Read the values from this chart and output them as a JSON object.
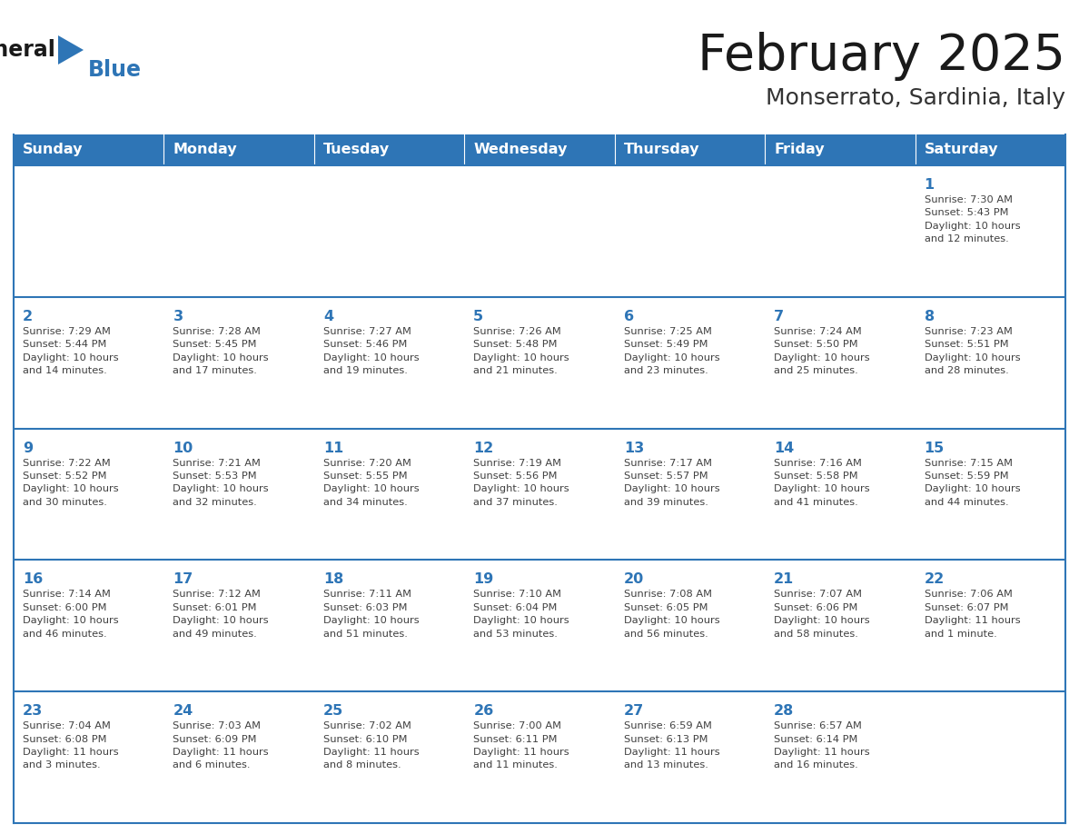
{
  "title": "February 2025",
  "subtitle": "Monserrato, Sardinia, Italy",
  "header_bg": "#2E75B6",
  "header_text_color": "#FFFFFF",
  "border_color": "#2E75B6",
  "title_color": "#1a1a1a",
  "subtitle_color": "#333333",
  "day_number_color": "#2E75B6",
  "info_color": "#404040",
  "logo_general_color": "#1a1a1a",
  "logo_blue_color": "#2E75B6",
  "logo_triangle_color": "#2E75B6",
  "day_names": [
    "Sunday",
    "Monday",
    "Tuesday",
    "Wednesday",
    "Thursday",
    "Friday",
    "Saturday"
  ],
  "weeks": [
    [
      {
        "day": "",
        "info": ""
      },
      {
        "day": "",
        "info": ""
      },
      {
        "day": "",
        "info": ""
      },
      {
        "day": "",
        "info": ""
      },
      {
        "day": "",
        "info": ""
      },
      {
        "day": "",
        "info": ""
      },
      {
        "day": "1",
        "info": "Sunrise: 7:30 AM\nSunset: 5:43 PM\nDaylight: 10 hours\nand 12 minutes."
      }
    ],
    [
      {
        "day": "2",
        "info": "Sunrise: 7:29 AM\nSunset: 5:44 PM\nDaylight: 10 hours\nand 14 minutes."
      },
      {
        "day": "3",
        "info": "Sunrise: 7:28 AM\nSunset: 5:45 PM\nDaylight: 10 hours\nand 17 minutes."
      },
      {
        "day": "4",
        "info": "Sunrise: 7:27 AM\nSunset: 5:46 PM\nDaylight: 10 hours\nand 19 minutes."
      },
      {
        "day": "5",
        "info": "Sunrise: 7:26 AM\nSunset: 5:48 PM\nDaylight: 10 hours\nand 21 minutes."
      },
      {
        "day": "6",
        "info": "Sunrise: 7:25 AM\nSunset: 5:49 PM\nDaylight: 10 hours\nand 23 minutes."
      },
      {
        "day": "7",
        "info": "Sunrise: 7:24 AM\nSunset: 5:50 PM\nDaylight: 10 hours\nand 25 minutes."
      },
      {
        "day": "8",
        "info": "Sunrise: 7:23 AM\nSunset: 5:51 PM\nDaylight: 10 hours\nand 28 minutes."
      }
    ],
    [
      {
        "day": "9",
        "info": "Sunrise: 7:22 AM\nSunset: 5:52 PM\nDaylight: 10 hours\nand 30 minutes."
      },
      {
        "day": "10",
        "info": "Sunrise: 7:21 AM\nSunset: 5:53 PM\nDaylight: 10 hours\nand 32 minutes."
      },
      {
        "day": "11",
        "info": "Sunrise: 7:20 AM\nSunset: 5:55 PM\nDaylight: 10 hours\nand 34 minutes."
      },
      {
        "day": "12",
        "info": "Sunrise: 7:19 AM\nSunset: 5:56 PM\nDaylight: 10 hours\nand 37 minutes."
      },
      {
        "day": "13",
        "info": "Sunrise: 7:17 AM\nSunset: 5:57 PM\nDaylight: 10 hours\nand 39 minutes."
      },
      {
        "day": "14",
        "info": "Sunrise: 7:16 AM\nSunset: 5:58 PM\nDaylight: 10 hours\nand 41 minutes."
      },
      {
        "day": "15",
        "info": "Sunrise: 7:15 AM\nSunset: 5:59 PM\nDaylight: 10 hours\nand 44 minutes."
      }
    ],
    [
      {
        "day": "16",
        "info": "Sunrise: 7:14 AM\nSunset: 6:00 PM\nDaylight: 10 hours\nand 46 minutes."
      },
      {
        "day": "17",
        "info": "Sunrise: 7:12 AM\nSunset: 6:01 PM\nDaylight: 10 hours\nand 49 minutes."
      },
      {
        "day": "18",
        "info": "Sunrise: 7:11 AM\nSunset: 6:03 PM\nDaylight: 10 hours\nand 51 minutes."
      },
      {
        "day": "19",
        "info": "Sunrise: 7:10 AM\nSunset: 6:04 PM\nDaylight: 10 hours\nand 53 minutes."
      },
      {
        "day": "20",
        "info": "Sunrise: 7:08 AM\nSunset: 6:05 PM\nDaylight: 10 hours\nand 56 minutes."
      },
      {
        "day": "21",
        "info": "Sunrise: 7:07 AM\nSunset: 6:06 PM\nDaylight: 10 hours\nand 58 minutes."
      },
      {
        "day": "22",
        "info": "Sunrise: 7:06 AM\nSunset: 6:07 PM\nDaylight: 11 hours\nand 1 minute."
      }
    ],
    [
      {
        "day": "23",
        "info": "Sunrise: 7:04 AM\nSunset: 6:08 PM\nDaylight: 11 hours\nand 3 minutes."
      },
      {
        "day": "24",
        "info": "Sunrise: 7:03 AM\nSunset: 6:09 PM\nDaylight: 11 hours\nand 6 minutes."
      },
      {
        "day": "25",
        "info": "Sunrise: 7:02 AM\nSunset: 6:10 PM\nDaylight: 11 hours\nand 8 minutes."
      },
      {
        "day": "26",
        "info": "Sunrise: 7:00 AM\nSunset: 6:11 PM\nDaylight: 11 hours\nand 11 minutes."
      },
      {
        "day": "27",
        "info": "Sunrise: 6:59 AM\nSunset: 6:13 PM\nDaylight: 11 hours\nand 13 minutes."
      },
      {
        "day": "28",
        "info": "Sunrise: 6:57 AM\nSunset: 6:14 PM\nDaylight: 11 hours\nand 16 minutes."
      },
      {
        "day": "",
        "info": ""
      }
    ]
  ]
}
